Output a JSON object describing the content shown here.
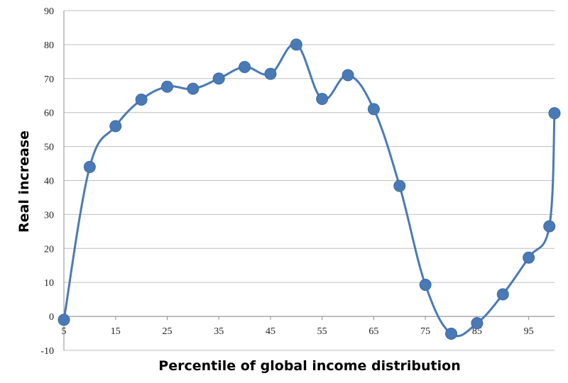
{
  "chart_data": {
    "type": "line",
    "xlabel": "Percentile of global income distribution",
    "ylabel": "Real increase",
    "xlim": [
      5,
      100
    ],
    "ylim": [
      -10,
      90
    ],
    "x_ticks": [
      5,
      15,
      25,
      35,
      45,
      55,
      65,
      75,
      85,
      95
    ],
    "x_tick_labels": [
      "5",
      "15",
      "25",
      "35",
      "45",
      "55",
      "65",
      "75",
      "85",
      "95"
    ],
    "y_ticks": [
      -10,
      0,
      10,
      20,
      30,
      40,
      50,
      60,
      70,
      80,
      90
    ],
    "y_tick_labels": [
      "-10",
      "0",
      "10",
      "20",
      "30",
      "40",
      "50",
      "60",
      "70",
      "80",
      "90"
    ],
    "grid": "horizontal",
    "series_color": "#4a7ab5",
    "gridline_color": "#bfbfbf",
    "series": [
      {
        "x": [
          5,
          10,
          15,
          20,
          25,
          30,
          35,
          40,
          45,
          50,
          55,
          60,
          65,
          70,
          75,
          80,
          85,
          90,
          95,
          99,
          100
        ],
        "values": [
          -1,
          44,
          56,
          63.8,
          67.6,
          67,
          70,
          73.4,
          71.4,
          80,
          64,
          71,
          61,
          38.4,
          9.3,
          -5.1,
          -2,
          6.5,
          17.3,
          26.5,
          59.8
        ]
      }
    ]
  }
}
